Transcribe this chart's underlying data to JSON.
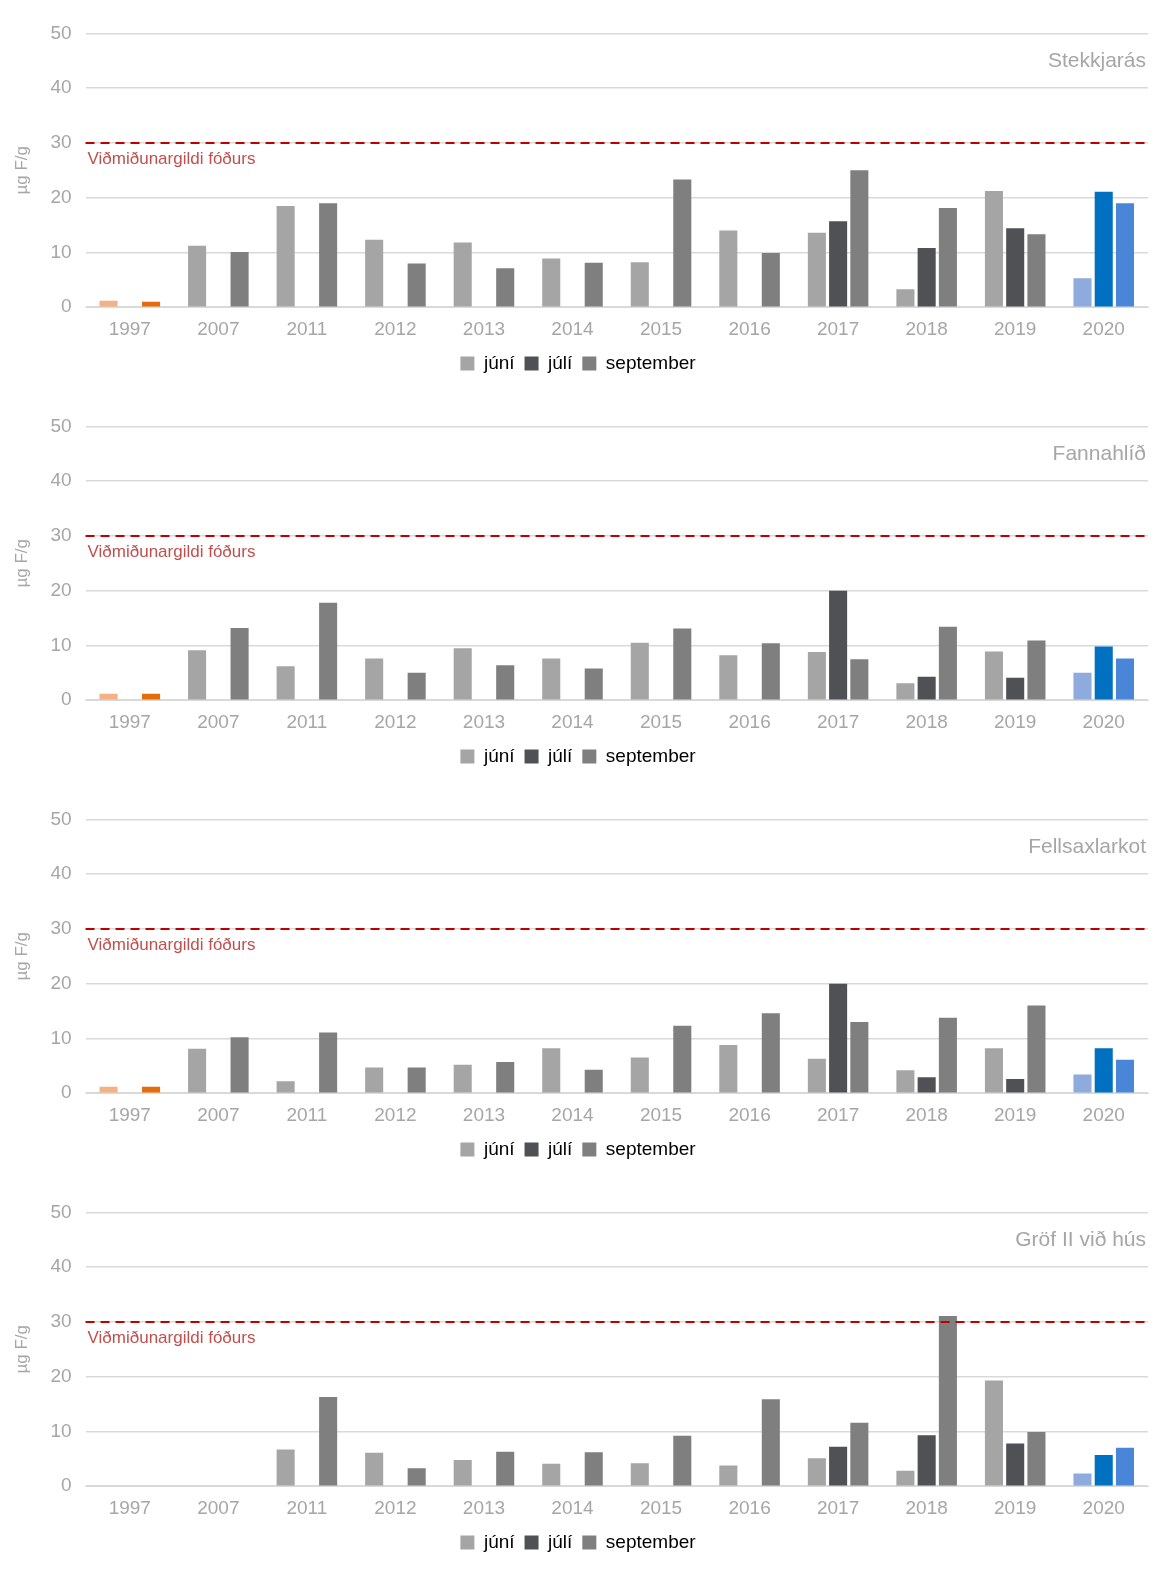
{
  "chart_data": [
    {
      "type": "bar",
      "title": "Stekkjarás",
      "ylabel": "µg F/g",
      "categories": [
        "1997",
        "2007",
        "2011",
        "2012",
        "2013",
        "2014",
        "2015",
        "2016",
        "2017",
        "2018",
        "2019",
        "2020"
      ],
      "ylim": [
        0,
        50
      ],
      "yticks": [
        0,
        10,
        20,
        30,
        40,
        50
      ],
      "grid": "y",
      "legend": "bottom",
      "ref_lines": [
        {
          "axis": "y",
          "value": 30,
          "label": "Viðmiðunargildi fóðurs",
          "color": "#c00000",
          "line_style": "dashed"
        }
      ],
      "series": [
        {
          "name": "júní",
          "color": "#a5a5a5",
          "colors": [
            "#f4b183",
            "#a5a5a5",
            "#a5a5a5",
            "#a5a5a5",
            "#a5a5a5",
            "#a5a5a5",
            "#a5a5a5",
            "#a5a5a5",
            "#a5a5a5",
            "#a5a5a5",
            "#a5a5a5",
            "#8faadc"
          ],
          "values": [
            1.2,
            11.2,
            18.5,
            12.3,
            11.8,
            8.9,
            8.2,
            14,
            13.6,
            3.3,
            21.2,
            5.3
          ]
        },
        {
          "name": "júlí",
          "color": "#505155",
          "colors": [
            "#505155",
            "#505155",
            "#505155",
            "#505155",
            "#505155",
            "#505155",
            "#505155",
            "#505155",
            "#505155",
            "#505155",
            "#505155",
            "#0070c0"
          ],
          "values": [
            null,
            null,
            null,
            null,
            null,
            null,
            null,
            null,
            15.7,
            10.8,
            14.4,
            21.1
          ]
        },
        {
          "name": "september",
          "color": "#7f7f7f",
          "colors": [
            "#e46c0a",
            "#7f7f7f",
            "#7f7f7f",
            "#7f7f7f",
            "#7f7f7f",
            "#7f7f7f",
            "#7f7f7f",
            "#7f7f7f",
            "#7f7f7f",
            "#7f7f7f",
            "#7f7f7f",
            "#4a86d8"
          ],
          "values": [
            1.0,
            10.1,
            19,
            8,
            7.1,
            8.1,
            23.3,
            9.9,
            25,
            18.1,
            13.3,
            19
          ]
        }
      ]
    },
    {
      "type": "bar",
      "title": "Fannahlíð",
      "ylabel": "µg F/g",
      "categories": [
        "1997",
        "2007",
        "2011",
        "2012",
        "2013",
        "2014",
        "2015",
        "2016",
        "2017",
        "2018",
        "2019",
        "2020"
      ],
      "ylim": [
        0,
        50
      ],
      "yticks": [
        0,
        10,
        20,
        30,
        40,
        50
      ],
      "grid": "y",
      "legend": "bottom",
      "ref_lines": [
        {
          "axis": "y",
          "value": 30,
          "label": "Viðmiðunargildi fóðurs",
          "color": "#c00000",
          "line_style": "dashed"
        }
      ],
      "series": [
        {
          "name": "júní",
          "color": "#a5a5a5",
          "colors": [
            "#f4b183",
            "#a5a5a5",
            "#a5a5a5",
            "#a5a5a5",
            "#a5a5a5",
            "#a5a5a5",
            "#a5a5a5",
            "#a5a5a5",
            "#a5a5a5",
            "#a5a5a5",
            "#a5a5a5",
            "#8faadc"
          ],
          "values": [
            1.2,
            9.1,
            6.2,
            7.6,
            9.5,
            7.6,
            10.5,
            8.2,
            8.8,
            3.1,
            8.9,
            5.0
          ]
        },
        {
          "name": "júlí",
          "color": "#505155",
          "colors": [
            "#505155",
            "#505155",
            "#505155",
            "#505155",
            "#505155",
            "#505155",
            "#505155",
            "#505155",
            "#505155",
            "#505155",
            "#505155",
            "#0070c0"
          ],
          "values": [
            null,
            null,
            null,
            null,
            null,
            null,
            null,
            null,
            20,
            4.3,
            4.1,
            9.8
          ]
        },
        {
          "name": "september",
          "color": "#7f7f7f",
          "colors": [
            "#e46c0a",
            "#7f7f7f",
            "#7f7f7f",
            "#7f7f7f",
            "#7f7f7f",
            "#7f7f7f",
            "#7f7f7f",
            "#7f7f7f",
            "#7f7f7f",
            "#7f7f7f",
            "#7f7f7f",
            "#4a86d8"
          ],
          "values": [
            1.2,
            13.2,
            17.8,
            5.0,
            6.4,
            5.8,
            13.1,
            10.4,
            7.5,
            13.4,
            10.9,
            7.6
          ]
        }
      ]
    },
    {
      "type": "bar",
      "title": "Fellsaxlarkot",
      "ylabel": "µg F/g",
      "categories": [
        "1997",
        "2007",
        "2011",
        "2012",
        "2013",
        "2014",
        "2015",
        "2016",
        "2017",
        "2018",
        "2019",
        "2020"
      ],
      "ylim": [
        0,
        50
      ],
      "yticks": [
        0,
        10,
        20,
        30,
        40,
        50
      ],
      "grid": "y",
      "legend": "bottom",
      "ref_lines": [
        {
          "axis": "y",
          "value": 30,
          "label": "Viðmiðunargildi fóðurs",
          "color": "#c00000",
          "line_style": "dashed"
        }
      ],
      "series": [
        {
          "name": "júní",
          "color": "#a5a5a5",
          "colors": [
            "#f4b183",
            "#a5a5a5",
            "#a5a5a5",
            "#a5a5a5",
            "#a5a5a5",
            "#a5a5a5",
            "#a5a5a5",
            "#a5a5a5",
            "#a5a5a5",
            "#a5a5a5",
            "#a5a5a5",
            "#8faadc"
          ],
          "values": [
            1.2,
            8.1,
            2.2,
            4.7,
            5.2,
            8.2,
            6.5,
            8.8,
            6.3,
            4.2,
            8.2,
            3.4
          ]
        },
        {
          "name": "júlí",
          "color": "#505155",
          "colors": [
            "#505155",
            "#505155",
            "#505155",
            "#505155",
            "#505155",
            "#505155",
            "#505155",
            "#505155",
            "#505155",
            "#505155",
            "#505155",
            "#0070c0"
          ],
          "values": [
            null,
            null,
            null,
            null,
            null,
            null,
            null,
            null,
            20,
            2.9,
            2.6,
            8.2
          ]
        },
        {
          "name": "september",
          "color": "#7f7f7f",
          "colors": [
            "#e46c0a",
            "#7f7f7f",
            "#7f7f7f",
            "#7f7f7f",
            "#7f7f7f",
            "#7f7f7f",
            "#7f7f7f",
            "#7f7f7f",
            "#7f7f7f",
            "#7f7f7f",
            "#7f7f7f",
            "#4a86d8"
          ],
          "values": [
            1.2,
            10.2,
            11.1,
            4.7,
            5.7,
            4.3,
            12.3,
            14.6,
            13,
            13.8,
            16,
            6.1
          ]
        }
      ]
    },
    {
      "type": "bar",
      "title": "Gröf II við hús",
      "ylabel": "µg F/g",
      "categories": [
        "1997",
        "2007",
        "2011",
        "2012",
        "2013",
        "2014",
        "2015",
        "2016",
        "2017",
        "2018",
        "2019",
        "2020"
      ],
      "ylim": [
        0,
        50
      ],
      "yticks": [
        0,
        10,
        20,
        30,
        40,
        50
      ],
      "grid": "y",
      "legend": "bottom",
      "ref_lines": [
        {
          "axis": "y",
          "value": 30,
          "label": "Viðmiðunargildi fóðurs",
          "color": "#c00000",
          "line_style": "dashed"
        }
      ],
      "series": [
        {
          "name": "júní",
          "color": "#a5a5a5",
          "colors": [
            "#a5a5a5",
            "#a5a5a5",
            "#a5a5a5",
            "#a5a5a5",
            "#a5a5a5",
            "#a5a5a5",
            "#a5a5a5",
            "#a5a5a5",
            "#a5a5a5",
            "#a5a5a5",
            "#a5a5a5",
            "#8faadc"
          ],
          "values": [
            null,
            null,
            6.7,
            6.1,
            4.8,
            4.1,
            4.2,
            3.8,
            5.1,
            2.8,
            19.3,
            2.3
          ]
        },
        {
          "name": "júlí",
          "color": "#505155",
          "colors": [
            "#505155",
            "#505155",
            "#505155",
            "#505155",
            "#505155",
            "#505155",
            "#505155",
            "#505155",
            "#505155",
            "#505155",
            "#505155",
            "#0070c0"
          ],
          "values": [
            null,
            null,
            null,
            null,
            null,
            null,
            null,
            null,
            7.2,
            9.3,
            7.8,
            5.7
          ]
        },
        {
          "name": "september",
          "color": "#7f7f7f",
          "colors": [
            "#7f7f7f",
            "#7f7f7f",
            "#7f7f7f",
            "#7f7f7f",
            "#7f7f7f",
            "#7f7f7f",
            "#7f7f7f",
            "#7f7f7f",
            "#7f7f7f",
            "#7f7f7f",
            "#7f7f7f",
            "#4a86d8"
          ],
          "values": [
            null,
            null,
            16.3,
            3.3,
            6.3,
            6.2,
            9.2,
            15.9,
            11.6,
            31.1,
            9.9,
            7.0
          ]
        }
      ]
    }
  ]
}
